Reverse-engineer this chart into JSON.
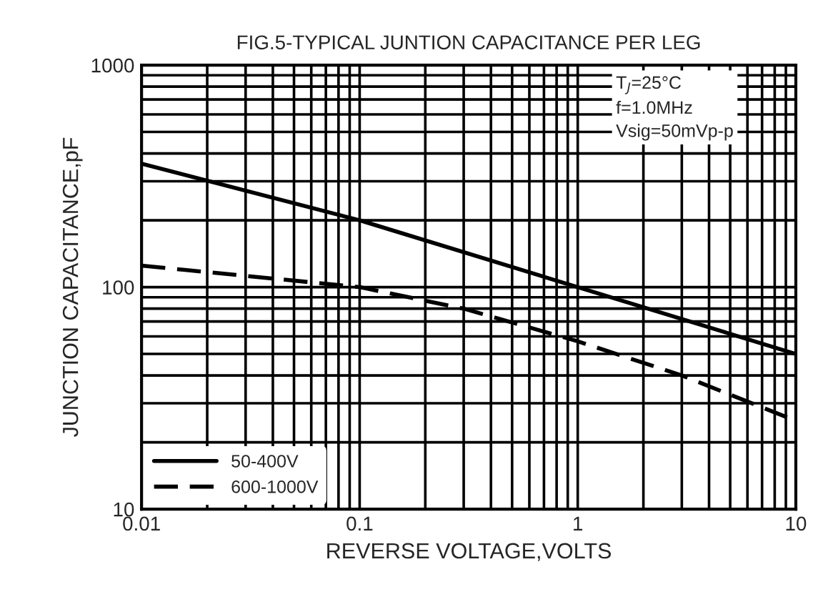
{
  "chart_data": {
    "type": "line",
    "title": "FIG.5-TYPICAL JUNTION CAPACITANCE PER LEG",
    "xlabel": "REVERSE VOLTAGE,VOLTS",
    "ylabel": "JUNCTION CAPACITANCE,pF",
    "log": "xy",
    "grid": true,
    "legend": "bottom left",
    "marker": "none",
    "xlim": [
      0.01,
      10
    ],
    "ylim": [
      10,
      1000
    ],
    "xticks": [
      0.01,
      {
        "value": 0.02,
        "label": null
      },
      {
        "value": 0.03,
        "label": null
      },
      {
        "value": 0.04,
        "label": null
      },
      {
        "value": 0.05,
        "label": null
      },
      {
        "value": 0.06,
        "label": null
      },
      {
        "value": 0.07,
        "label": null
      },
      {
        "value": 0.08,
        "label": null
      },
      {
        "value": 0.09,
        "label": null
      },
      0.1,
      {
        "value": 0.2,
        "label": null
      },
      {
        "value": 0.3,
        "label": null
      },
      {
        "value": 0.4,
        "label": null
      },
      {
        "value": 0.5,
        "label": null
      },
      {
        "value": 0.6,
        "label": null
      },
      {
        "value": 0.7,
        "label": null
      },
      {
        "value": 0.8,
        "label": null
      },
      {
        "value": 0.9,
        "label": null
      },
      1,
      {
        "value": 2,
        "label": null
      },
      {
        "value": 3,
        "label": null
      },
      {
        "value": 4,
        "label": null
      },
      {
        "value": 5,
        "label": null
      },
      {
        "value": 6,
        "label": null
      },
      {
        "value": 7,
        "label": null
      },
      {
        "value": 8,
        "label": null
      },
      {
        "value": 9,
        "label": null
      },
      10
    ],
    "yticks": [
      10,
      {
        "value": 20,
        "label": null
      },
      {
        "value": 30,
        "label": null
      },
      {
        "value": 40,
        "label": null
      },
      {
        "value": 50,
        "label": null
      },
      {
        "value": 60,
        "label": null
      },
      {
        "value": 70,
        "label": null
      },
      {
        "value": 80,
        "label": null
      },
      {
        "value": 90,
        "label": null
      },
      100,
      {
        "value": 200,
        "label": null
      },
      {
        "value": 300,
        "label": null
      },
      {
        "value": 400,
        "label": null
      },
      {
        "value": 500,
        "label": null
      },
      {
        "value": 600,
        "label": null
      },
      {
        "value": 700,
        "label": null
      },
      {
        "value": 800,
        "label": null
      },
      {
        "value": 900,
        "label": null
      },
      1000
    ],
    "series": [
      {
        "name": "50-400V",
        "color": "#000000",
        "line_style": "solid",
        "x": [
          0.01,
          0.1,
          1,
          10
        ],
        "values": [
          360,
          200,
          100,
          50
        ]
      },
      {
        "name": "600-1000V",
        "color": "#000000",
        "line_style": "dashed",
        "x": [
          0.01,
          0.1,
          0.3,
          1,
          3,
          10
        ],
        "values": [
          125,
          100,
          80,
          57,
          40,
          25
        ]
      }
    ],
    "annotations": [
      "T$_{J}$=25°C",
      "f=1.0MHz",
      "Vsig=50mVp-p"
    ]
  }
}
